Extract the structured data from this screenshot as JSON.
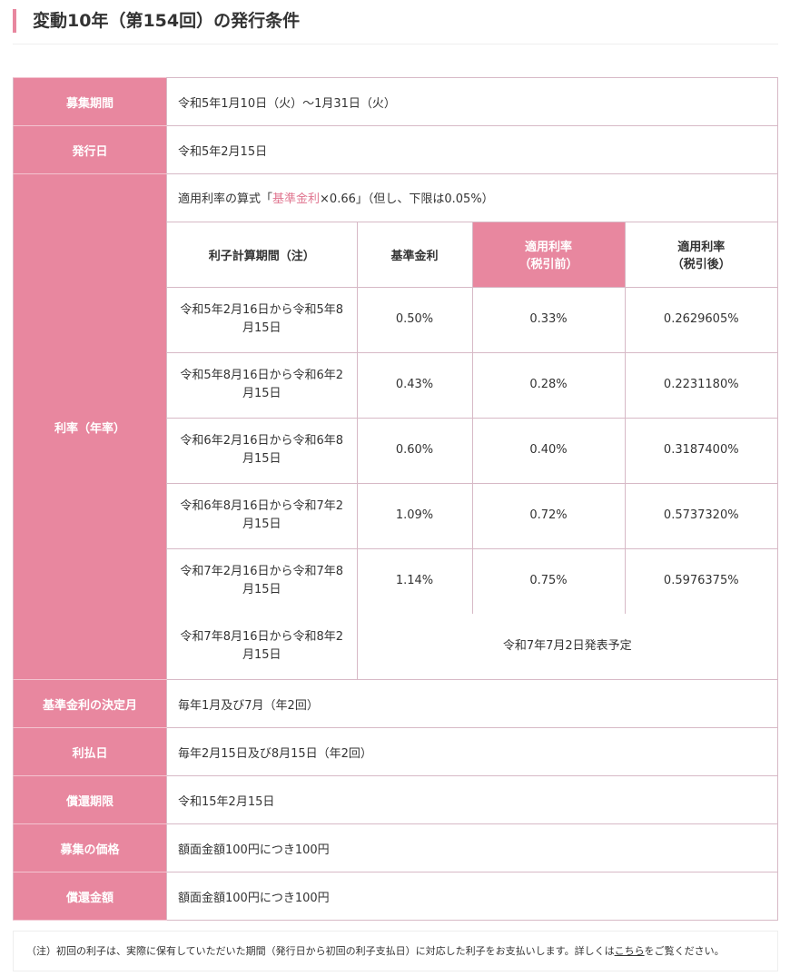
{
  "title": "変動10年（第154回）の発行条件",
  "rows_top": [
    {
      "label": "募集期間",
      "value": "令和5年1月10日（火）～1月31日（火）"
    },
    {
      "label": "発行日",
      "value": "令和5年2月15日"
    }
  ],
  "rate": {
    "label": "利率（年率）",
    "formula_prefix": "適用利率の算式「",
    "formula_link": "基準金利",
    "formula_suffix": "×0.66」（但し、下限は0.05%）",
    "headers": [
      "利子計算期間（注）",
      "基準金利",
      "適用利率\n（税引前）",
      "適用利率\n（税引後）"
    ],
    "rows": [
      {
        "period": "令和5年2月16日から令和5年8月15日",
        "base": "0.50%",
        "pre": "0.33%",
        "post": "0.2629605%"
      },
      {
        "period": "令和5年8月16日から令和6年2月15日",
        "base": "0.43%",
        "pre": "0.28%",
        "post": "0.2231180%"
      },
      {
        "period": "令和6年2月16日から令和6年8月15日",
        "base": "0.60%",
        "pre": "0.40%",
        "post": "0.3187400%"
      },
      {
        "period": "令和6年8月16日から令和7年2月15日",
        "base": "1.09%",
        "pre": "0.72%",
        "post": "0.5737320%"
      },
      {
        "period": "令和7年2月16日から令和7年8月15日",
        "base": "1.14%",
        "pre": "0.75%",
        "post": "0.5976375%"
      }
    ],
    "last_row": {
      "period": "令和7年8月16日から令和8年2月15日",
      "note": "令和7年7月2日発表予定"
    }
  },
  "rows_bottom": [
    {
      "label": "基準金利の決定月",
      "value": "毎年1月及び7月（年2回）"
    },
    {
      "label": "利払日",
      "value": "毎年2月15日及び8月15日（年2回）"
    },
    {
      "label": "償還期限",
      "value": "令和15年2月15日"
    },
    {
      "label": "募集の価格",
      "value": "額面金額100円につき100円"
    },
    {
      "label": "償還金額",
      "value": "額面金額100円につき100円"
    }
  ],
  "note": {
    "prefix": "（注）初回の利子は、実際に保有していただいた期間（発行日から初回の利子支払日）に対応した利子をお支払いします。詳しくは",
    "link": "こちら",
    "suffix": "をご覧ください。"
  },
  "colors": {
    "accent": "#e8879f",
    "border": "#d7b9c6"
  }
}
